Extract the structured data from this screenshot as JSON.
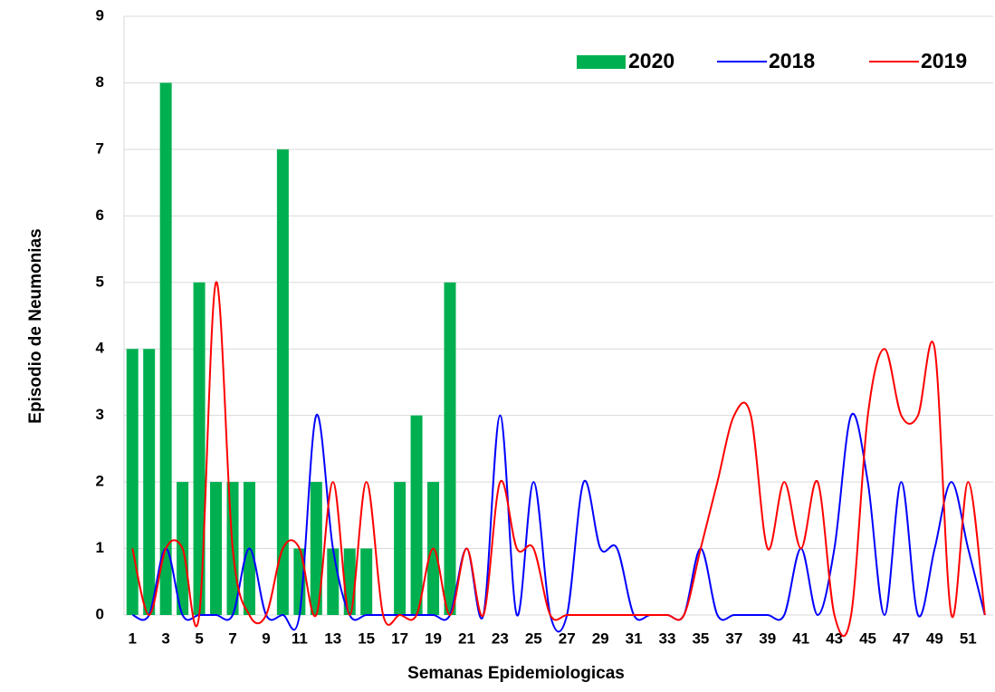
{
  "chart_data": {
    "type": "bar-line",
    "x_label": "Semanas Epidemiologicas",
    "y_label": "Episodio de Neumonias",
    "categories": [
      "1",
      null,
      "3",
      null,
      "5",
      null,
      "7",
      null,
      "9",
      null,
      "11",
      null,
      "13",
      null,
      "15",
      null,
      "17",
      null,
      "19",
      null,
      "21",
      null,
      "23",
      null,
      "25",
      null,
      "27",
      null,
      "29",
      null,
      "31",
      null,
      "33",
      null,
      "35",
      null,
      "37",
      null,
      "39",
      null,
      "41",
      null,
      "43",
      null,
      "45",
      null,
      "47",
      null,
      "49",
      null,
      "51",
      null
    ],
    "series": [
      {
        "name": "2020",
        "kind": "bar",
        "color": "#00b050",
        "values": [
          4,
          4,
          8,
          2,
          5,
          2,
          2,
          2,
          0,
          7,
          1,
          2,
          1,
          1,
          1,
          0,
          2,
          3,
          2,
          5,
          null,
          null,
          null,
          null,
          null,
          null,
          null,
          null,
          null,
          null,
          null,
          null,
          null,
          null,
          null,
          null,
          null,
          null,
          null,
          null,
          null,
          null,
          null,
          null,
          null,
          null,
          null,
          null,
          null,
          null,
          null,
          null
        ]
      },
      {
        "name": "2018",
        "kind": "line",
        "color": "#0000ff",
        "values": [
          0,
          0,
          1,
          0,
          0,
          0,
          0,
          1,
          0,
          0,
          0,
          3,
          1,
          0,
          0,
          0,
          0,
          0,
          0,
          0,
          1,
          0,
          3,
          0,
          2,
          0,
          0,
          2,
          1,
          1,
          0,
          0,
          0,
          0,
          1,
          0,
          0,
          0,
          0,
          0,
          1,
          0,
          1,
          3,
          2,
          0,
          2,
          0,
          1,
          2,
          1,
          0
        ]
      },
      {
        "name": "2019",
        "kind": "line",
        "color": "#ff0000",
        "values": [
          1,
          0,
          1,
          1,
          0,
          5,
          1,
          0,
          0,
          1,
          1,
          0,
          2,
          0,
          2,
          0,
          0,
          0,
          1,
          0,
          1,
          0,
          2,
          1,
          1,
          0,
          0,
          0,
          0,
          0,
          0,
          0,
          0,
          0,
          1,
          2,
          3,
          3,
          1,
          2,
          1,
          2,
          0,
          0,
          3,
          4,
          3,
          3,
          4,
          0,
          2,
          0
        ]
      }
    ],
    "ylim": [
      0,
      9
    ],
    "yticks": [
      0,
      1,
      2,
      3,
      4,
      5,
      6,
      7,
      8,
      9
    ],
    "grid": true,
    "smooth": true,
    "legend": "top-right"
  }
}
